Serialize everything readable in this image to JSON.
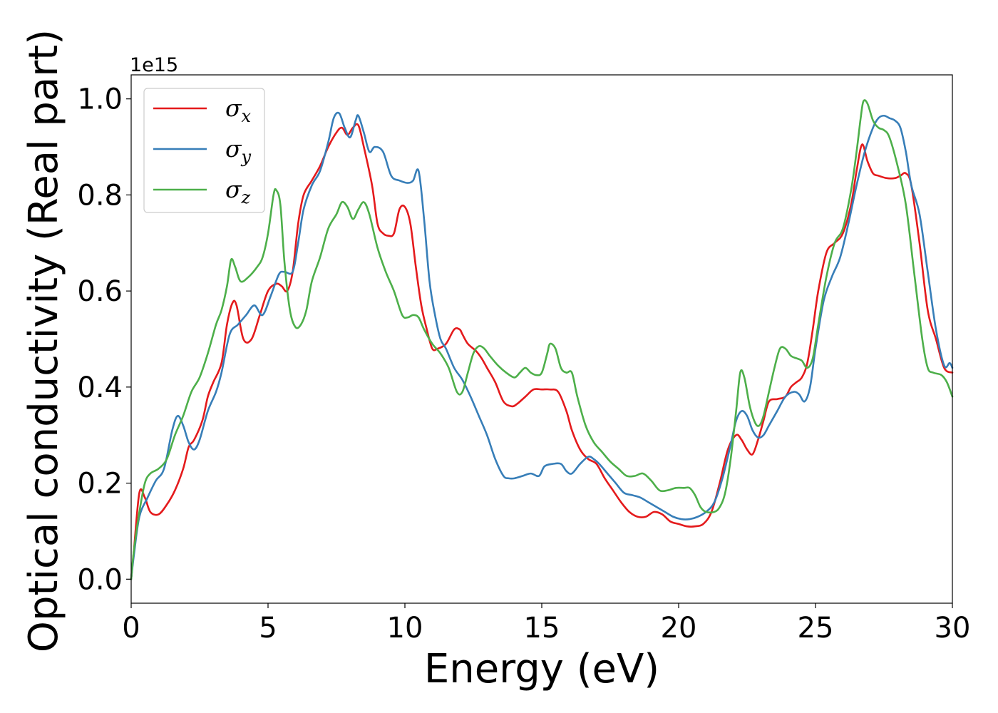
{
  "chart_data": {
    "type": "line",
    "xlabel": "Energy (eV)",
    "ylabel": "Optical conductivity (Real part)",
    "y_offset_label": "1e15",
    "xlim": [
      0,
      30
    ],
    "ylim": [
      -0.05,
      1.05
    ],
    "x_ticks": [
      0,
      5,
      10,
      15,
      20,
      25,
      30
    ],
    "y_ticks": [
      0.0,
      0.2,
      0.4,
      0.6,
      0.8,
      1.0
    ],
    "x_tick_labels": [
      "0",
      "5",
      "10",
      "15",
      "20",
      "25",
      "30"
    ],
    "y_tick_labels": [
      "0.0",
      "0.2",
      "0.4",
      "0.6",
      "0.8",
      "1.0"
    ],
    "grid": false,
    "legend_position": "top-left",
    "series": [
      {
        "name": "σx",
        "symbol": "σ",
        "subscript": "x",
        "color": "#e41a1c",
        "x": [
          0,
          0.1,
          0.3,
          0.5,
          0.7,
          1.0,
          1.3,
          1.6,
          1.9,
          2.1,
          2.3,
          2.6,
          2.8,
          3.0,
          3.3,
          3.5,
          3.7,
          3.85,
          4.1,
          4.4,
          4.7,
          5.0,
          5.3,
          5.5,
          5.7,
          5.9,
          6.1,
          6.3,
          6.6,
          6.9,
          7.2,
          7.5,
          7.7,
          7.9,
          8.1,
          8.3,
          8.5,
          8.8,
          9.0,
          9.2,
          9.4,
          9.6,
          9.8,
          10.0,
          10.2,
          10.4,
          10.6,
          10.8,
          11.0,
          11.2,
          11.5,
          11.8,
          12.0,
          12.1,
          12.3,
          12.6,
          12.8,
          13.0,
          13.3,
          13.6,
          13.9,
          14.1,
          14.4,
          14.7,
          15.0,
          15.3,
          15.6,
          15.9,
          16.1,
          16.4,
          16.7,
          17.0,
          17.3,
          17.6,
          17.9,
          18.2,
          18.5,
          18.8,
          19.1,
          19.4,
          19.7,
          20.0,
          20.3,
          20.6,
          20.9,
          21.2,
          21.5,
          21.8,
          22.1,
          22.3,
          22.5,
          22.7,
          22.9,
          23.1,
          23.3,
          23.6,
          23.9,
          24.1,
          24.3,
          24.5,
          24.7,
          24.9,
          25.1,
          25.4,
          25.7,
          26.0,
          26.3,
          26.5,
          26.7,
          26.9,
          27.1,
          27.3,
          27.6,
          27.9,
          28.1,
          28.3,
          28.5,
          28.8,
          29.1,
          29.4,
          29.7,
          30.0
        ],
        "y": [
          0.0,
          0.06,
          0.18,
          0.17,
          0.14,
          0.135,
          0.155,
          0.185,
          0.23,
          0.275,
          0.29,
          0.33,
          0.38,
          0.41,
          0.45,
          0.53,
          0.575,
          0.57,
          0.5,
          0.5,
          0.55,
          0.6,
          0.615,
          0.61,
          0.6,
          0.64,
          0.74,
          0.8,
          0.83,
          0.86,
          0.9,
          0.93,
          0.94,
          0.925,
          0.94,
          0.945,
          0.9,
          0.82,
          0.74,
          0.72,
          0.715,
          0.72,
          0.77,
          0.775,
          0.74,
          0.65,
          0.57,
          0.52,
          0.48,
          0.48,
          0.49,
          0.52,
          0.52,
          0.51,
          0.49,
          0.475,
          0.46,
          0.44,
          0.41,
          0.37,
          0.36,
          0.365,
          0.38,
          0.395,
          0.395,
          0.395,
          0.39,
          0.35,
          0.31,
          0.27,
          0.25,
          0.24,
          0.21,
          0.185,
          0.16,
          0.14,
          0.13,
          0.13,
          0.14,
          0.135,
          0.12,
          0.115,
          0.11,
          0.11,
          0.115,
          0.14,
          0.2,
          0.27,
          0.3,
          0.29,
          0.27,
          0.26,
          0.29,
          0.33,
          0.37,
          0.375,
          0.38,
          0.4,
          0.41,
          0.42,
          0.45,
          0.52,
          0.6,
          0.68,
          0.7,
          0.72,
          0.78,
          0.85,
          0.905,
          0.87,
          0.845,
          0.84,
          0.835,
          0.835,
          0.84,
          0.845,
          0.82,
          0.7,
          0.56,
          0.5,
          0.44,
          0.43
        ]
      },
      {
        "name": "σy",
        "symbol": "σ",
        "subscript": "y",
        "color": "#377eb8",
        "x": [
          0,
          0.1,
          0.3,
          0.6,
          0.9,
          1.2,
          1.5,
          1.7,
          1.9,
          2.1,
          2.3,
          2.5,
          2.8,
          3.1,
          3.3,
          3.6,
          3.9,
          4.2,
          4.5,
          4.8,
          5.1,
          5.4,
          5.6,
          5.9,
          6.1,
          6.3,
          6.6,
          6.9,
          7.2,
          7.4,
          7.6,
          7.8,
          8.0,
          8.2,
          8.3,
          8.5,
          8.7,
          8.9,
          9.2,
          9.5,
          9.8,
          10.1,
          10.3,
          10.5,
          10.7,
          10.9,
          11.1,
          11.3,
          11.5,
          11.8,
          12.1,
          12.4,
          12.7,
          13.0,
          13.3,
          13.6,
          13.8,
          14.0,
          14.3,
          14.6,
          14.9,
          15.1,
          15.4,
          15.7,
          15.9,
          16.1,
          16.4,
          16.7,
          16.9,
          17.1,
          17.4,
          17.7,
          18.0,
          18.3,
          18.6,
          18.9,
          19.2,
          19.5,
          19.8,
          20.1,
          20.4,
          20.7,
          21.0,
          21.3,
          21.6,
          21.9,
          22.1,
          22.3,
          22.5,
          22.7,
          22.9,
          23.1,
          23.3,
          23.6,
          23.9,
          24.2,
          24.4,
          24.6,
          24.8,
          25.0,
          25.3,
          25.6,
          25.9,
          26.2,
          26.5,
          26.8,
          27.1,
          27.3,
          27.5,
          27.7,
          27.9,
          28.1,
          28.3,
          28.5,
          28.8,
          29.1,
          29.4,
          29.7,
          29.9,
          30.0
        ],
        "y": [
          0.0,
          0.05,
          0.13,
          0.17,
          0.205,
          0.23,
          0.31,
          0.34,
          0.32,
          0.285,
          0.27,
          0.29,
          0.35,
          0.39,
          0.43,
          0.51,
          0.53,
          0.55,
          0.57,
          0.55,
          0.59,
          0.635,
          0.64,
          0.64,
          0.7,
          0.77,
          0.82,
          0.85,
          0.91,
          0.96,
          0.97,
          0.94,
          0.92,
          0.955,
          0.965,
          0.93,
          0.89,
          0.9,
          0.89,
          0.84,
          0.83,
          0.825,
          0.83,
          0.85,
          0.75,
          0.62,
          0.55,
          0.5,
          0.48,
          0.44,
          0.415,
          0.38,
          0.34,
          0.3,
          0.25,
          0.215,
          0.21,
          0.21,
          0.215,
          0.22,
          0.215,
          0.235,
          0.24,
          0.24,
          0.225,
          0.22,
          0.24,
          0.255,
          0.25,
          0.24,
          0.22,
          0.2,
          0.18,
          0.175,
          0.17,
          0.16,
          0.15,
          0.14,
          0.13,
          0.125,
          0.125,
          0.13,
          0.14,
          0.16,
          0.21,
          0.28,
          0.33,
          0.35,
          0.34,
          0.31,
          0.295,
          0.3,
          0.32,
          0.35,
          0.38,
          0.39,
          0.385,
          0.37,
          0.4,
          0.48,
          0.58,
          0.63,
          0.67,
          0.74,
          0.82,
          0.89,
          0.94,
          0.96,
          0.965,
          0.96,
          0.955,
          0.94,
          0.89,
          0.82,
          0.76,
          0.64,
          0.52,
          0.445,
          0.45,
          0.44
        ]
      },
      {
        "name": "σz",
        "symbol": "σ",
        "subscript": "z",
        "color": "#4daf4a",
        "x": [
          0,
          0.1,
          0.3,
          0.5,
          0.7,
          1.0,
          1.3,
          1.6,
          1.9,
          2.2,
          2.5,
          2.8,
          3.1,
          3.3,
          3.5,
          3.65,
          3.8,
          4.0,
          4.3,
          4.6,
          4.8,
          5.0,
          5.2,
          5.3,
          5.45,
          5.6,
          5.8,
          6.0,
          6.2,
          6.4,
          6.6,
          6.9,
          7.2,
          7.5,
          7.7,
          7.9,
          8.1,
          8.3,
          8.5,
          8.7,
          9.0,
          9.3,
          9.6,
          9.9,
          10.1,
          10.3,
          10.5,
          10.7,
          11.0,
          11.3,
          11.6,
          11.9,
          12.1,
          12.3,
          12.5,
          12.7,
          12.9,
          13.1,
          13.4,
          13.7,
          14.0,
          14.2,
          14.4,
          14.6,
          14.8,
          15.0,
          15.2,
          15.3,
          15.5,
          15.7,
          15.9,
          16.1,
          16.3,
          16.6,
          16.9,
          17.2,
          17.5,
          17.8,
          18.1,
          18.4,
          18.7,
          19.0,
          19.3,
          19.6,
          19.9,
          20.2,
          20.4,
          20.6,
          20.8,
          21.0,
          21.3,
          21.5,
          21.7,
          21.9,
          22.1,
          22.25,
          22.4,
          22.6,
          22.8,
          22.95,
          23.1,
          23.3,
          23.5,
          23.7,
          23.9,
          24.1,
          24.3,
          24.5,
          24.7,
          24.9,
          25.1,
          25.4,
          25.7,
          26.0,
          26.3,
          26.5,
          26.65,
          26.75,
          26.9,
          27.1,
          27.3,
          27.5,
          27.7,
          28.0,
          28.3,
          28.6,
          28.9,
          29.1,
          29.3,
          29.6,
          29.8,
          30.0
        ],
        "y": [
          0.0,
          0.06,
          0.14,
          0.2,
          0.22,
          0.23,
          0.25,
          0.3,
          0.34,
          0.39,
          0.42,
          0.47,
          0.53,
          0.56,
          0.61,
          0.665,
          0.65,
          0.62,
          0.63,
          0.65,
          0.67,
          0.72,
          0.8,
          0.81,
          0.78,
          0.66,
          0.56,
          0.525,
          0.53,
          0.56,
          0.62,
          0.67,
          0.73,
          0.76,
          0.785,
          0.775,
          0.75,
          0.77,
          0.785,
          0.76,
          0.69,
          0.64,
          0.6,
          0.55,
          0.545,
          0.55,
          0.545,
          0.52,
          0.49,
          0.47,
          0.44,
          0.39,
          0.39,
          0.43,
          0.47,
          0.485,
          0.48,
          0.465,
          0.445,
          0.43,
          0.42,
          0.43,
          0.44,
          0.43,
          0.425,
          0.43,
          0.47,
          0.49,
          0.48,
          0.44,
          0.43,
          0.43,
          0.38,
          0.32,
          0.285,
          0.265,
          0.245,
          0.23,
          0.215,
          0.215,
          0.22,
          0.205,
          0.185,
          0.185,
          0.19,
          0.19,
          0.19,
          0.175,
          0.15,
          0.14,
          0.14,
          0.15,
          0.18,
          0.25,
          0.35,
          0.43,
          0.42,
          0.36,
          0.325,
          0.32,
          0.34,
          0.39,
          0.44,
          0.48,
          0.48,
          0.465,
          0.46,
          0.455,
          0.44,
          0.46,
          0.53,
          0.63,
          0.7,
          0.73,
          0.81,
          0.89,
          0.96,
          0.995,
          0.99,
          0.955,
          0.94,
          0.935,
          0.92,
          0.86,
          0.78,
          0.64,
          0.5,
          0.44,
          0.43,
          0.425,
          0.41,
          0.38
        ]
      }
    ]
  }
}
